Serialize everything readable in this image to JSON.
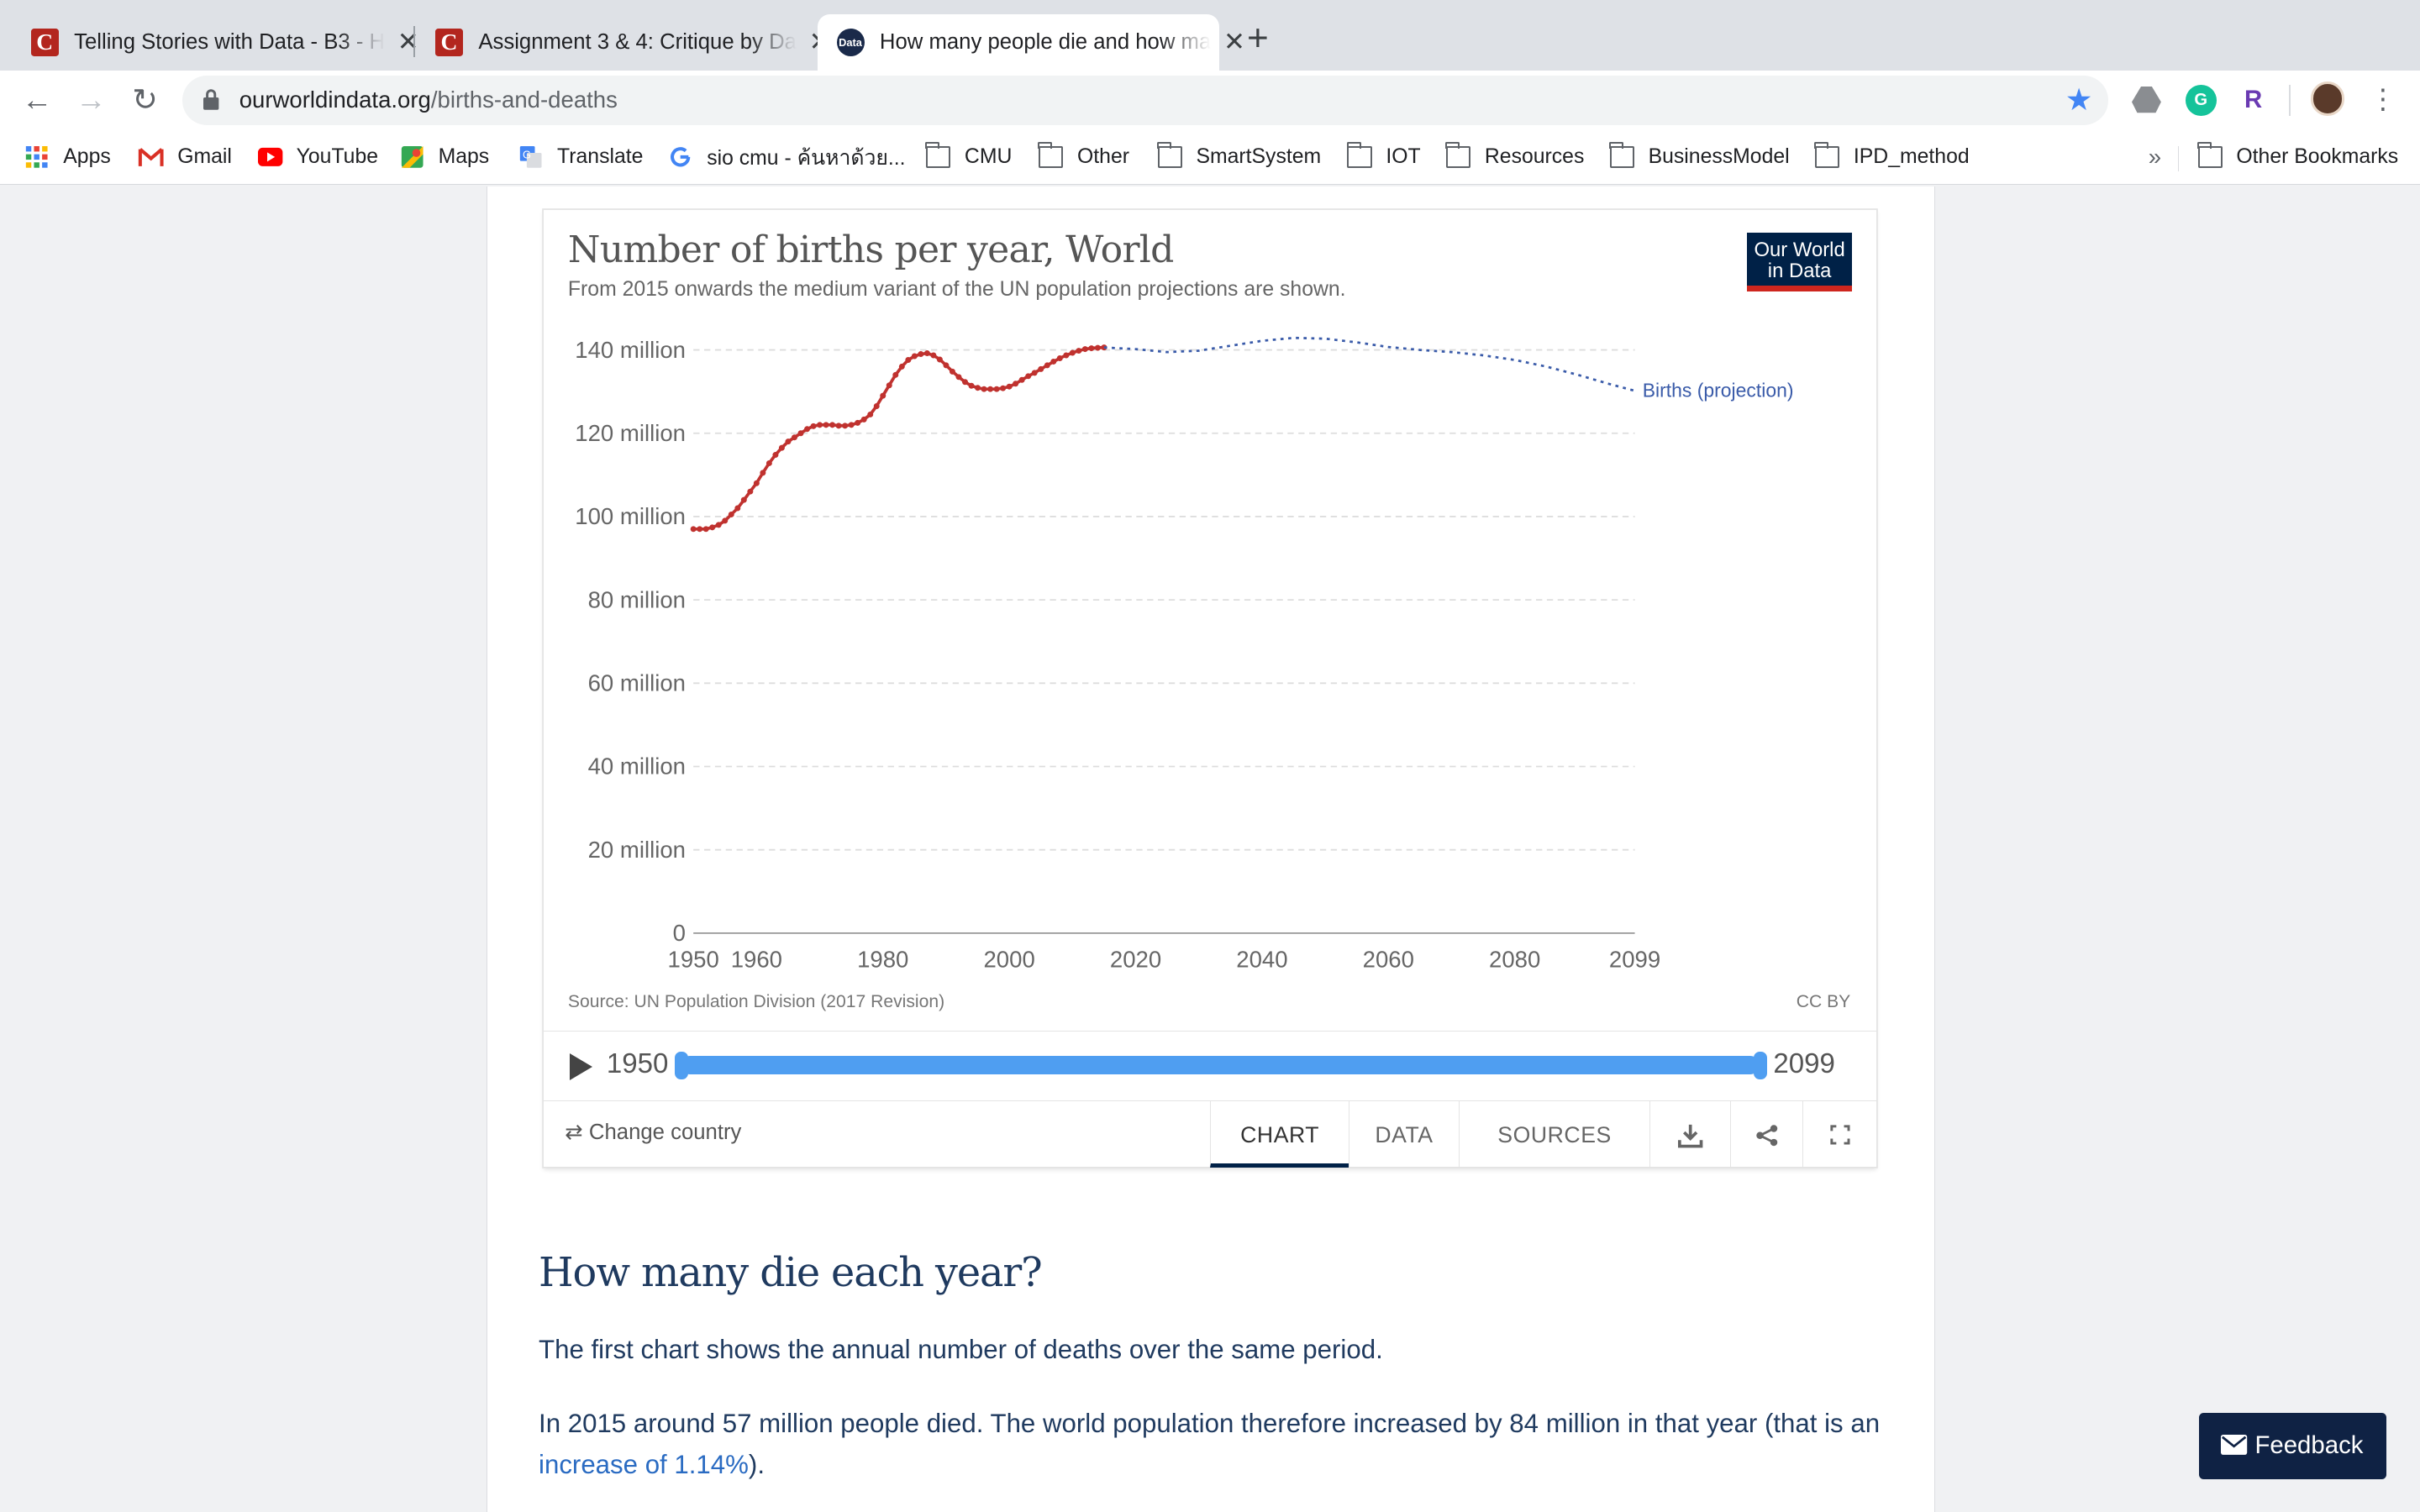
{
  "browser": {
    "tabs": [
      {
        "title": "Telling Stories with Data - B3 - H",
        "favicon": "C"
      },
      {
        "title": "Assignment 3 & 4: Critique by Da",
        "favicon": "C"
      },
      {
        "title": "How many people die and how ma",
        "favicon": "Data"
      }
    ],
    "url": {
      "domain": "ourworldindata.org",
      "path": "/births-and-deaths"
    },
    "bookmarks": [
      {
        "label": "Apps"
      },
      {
        "label": "Gmail"
      },
      {
        "label": "YouTube"
      },
      {
        "label": "Maps"
      },
      {
        "label": "Translate"
      },
      {
        "label": "sio cmu - ค้นหาด้วย..."
      },
      {
        "label": "CMU"
      },
      {
        "label": "Other"
      },
      {
        "label": "SmartSystem"
      },
      {
        "label": "IOT"
      },
      {
        "label": "Resources"
      },
      {
        "label": "BusinessModel"
      },
      {
        "label": "IPD_method"
      }
    ],
    "overflow": "»",
    "other_bookmarks": "Other Bookmarks"
  },
  "chart": {
    "title": "Number of births per year, World",
    "subtitle": "From 2015 onwards the medium variant of the UN population projections are shown.",
    "logo_line1": "Our World",
    "logo_line2": "in Data",
    "source": "Source: UN Population Division (2017 Revision)",
    "license": "CC BY",
    "timeline_start": "1950",
    "timeline_end": "2099",
    "change_country": "Change country",
    "tabs": [
      "CHART",
      "DATA",
      "SOURCES"
    ],
    "colors": {
      "historical": "#c0322f",
      "projection": "#3a5ba9",
      "grid": "#dddddd"
    }
  },
  "chart_data": {
    "type": "line",
    "title": "Number of births per year, World",
    "subtitle": "From 2015 onwards the medium variant of the UN population projections are shown.",
    "ylim": [
      0,
      140
    ],
    "y_unit": "million",
    "y_ticks": [
      "0",
      "20 million",
      "40 million",
      "60 million",
      "80 million",
      "100 million",
      "120 million",
      "140 million"
    ],
    "x_ticks": [
      "1950",
      "1960",
      "1980",
      "2000",
      "2020",
      "2040",
      "2060",
      "2080",
      "2099"
    ],
    "xlim": [
      1950,
      2099
    ],
    "series": [
      {
        "style": "solid-dots",
        "color": "#c0322f",
        "x": [
          1950,
          1951,
          1952,
          1953,
          1954,
          1955,
          1956,
          1957,
          1958,
          1959,
          1960,
          1961,
          1962,
          1963,
          1964,
          1965,
          1966,
          1967,
          1968,
          1969,
          1970,
          1971,
          1972,
          1973,
          1974,
          1975,
          1976,
          1977,
          1978,
          1979,
          1980,
          1981,
          1982,
          1983,
          1984,
          1985,
          1986,
          1987,
          1988,
          1989,
          1990,
          1991,
          1992,
          1993,
          1994,
          1995,
          1996,
          1997,
          1998,
          1999,
          2000,
          2001,
          2002,
          2003,
          2004,
          2005,
          2006,
          2007,
          2008,
          2009,
          2010,
          2011,
          2012,
          2013,
          2014,
          2015
        ],
        "values": [
          97.0,
          97.0,
          97.0,
          97.4,
          98.0,
          99.0,
          100.5,
          102.0,
          104.0,
          106.0,
          108.0,
          110.5,
          112.8,
          114.8,
          116.5,
          118.0,
          119.0,
          120.0,
          121.0,
          121.7,
          122.0,
          122.0,
          122.0,
          121.8,
          121.8,
          122.0,
          122.5,
          123.3,
          124.5,
          126.5,
          129.0,
          131.5,
          134.0,
          136.0,
          137.6,
          138.5,
          139.0,
          139.2,
          138.7,
          137.7,
          136.3,
          134.8,
          133.5,
          132.3,
          131.4,
          130.9,
          130.6,
          130.6,
          130.6,
          130.8,
          131.2,
          131.9,
          132.8,
          133.7,
          134.5,
          135.4,
          136.3,
          137.2,
          138.0,
          138.7,
          139.3,
          139.8,
          140.2,
          140.4,
          140.5,
          140.6
        ]
      },
      {
        "name": "Births (projection)",
        "style": "dotted",
        "color": "#3a5ba9",
        "x": [
          2015,
          2020,
          2025,
          2030,
          2035,
          2040,
          2045,
          2050,
          2055,
          2060,
          2065,
          2070,
          2075,
          2080,
          2085,
          2090,
          2095,
          2099
        ],
        "values": [
          140.6,
          140.2,
          139.5,
          139.8,
          141.0,
          142.2,
          142.9,
          142.7,
          141.8,
          140.7,
          140.0,
          139.5,
          138.7,
          137.6,
          136.0,
          134.0,
          131.8,
          130.2
        ]
      }
    ],
    "legend": "right-end label"
  },
  "article": {
    "heading": "How many die each year?",
    "p1": "The first chart shows the annual number of deaths over the same period.",
    "p2_before": "In 2015 around 57 million people died. The world population therefore increased by 84 million in that year (that is an ",
    "p2_link": "increase of 1.14%",
    "p2_after": ")."
  },
  "feedback": "Feedback"
}
